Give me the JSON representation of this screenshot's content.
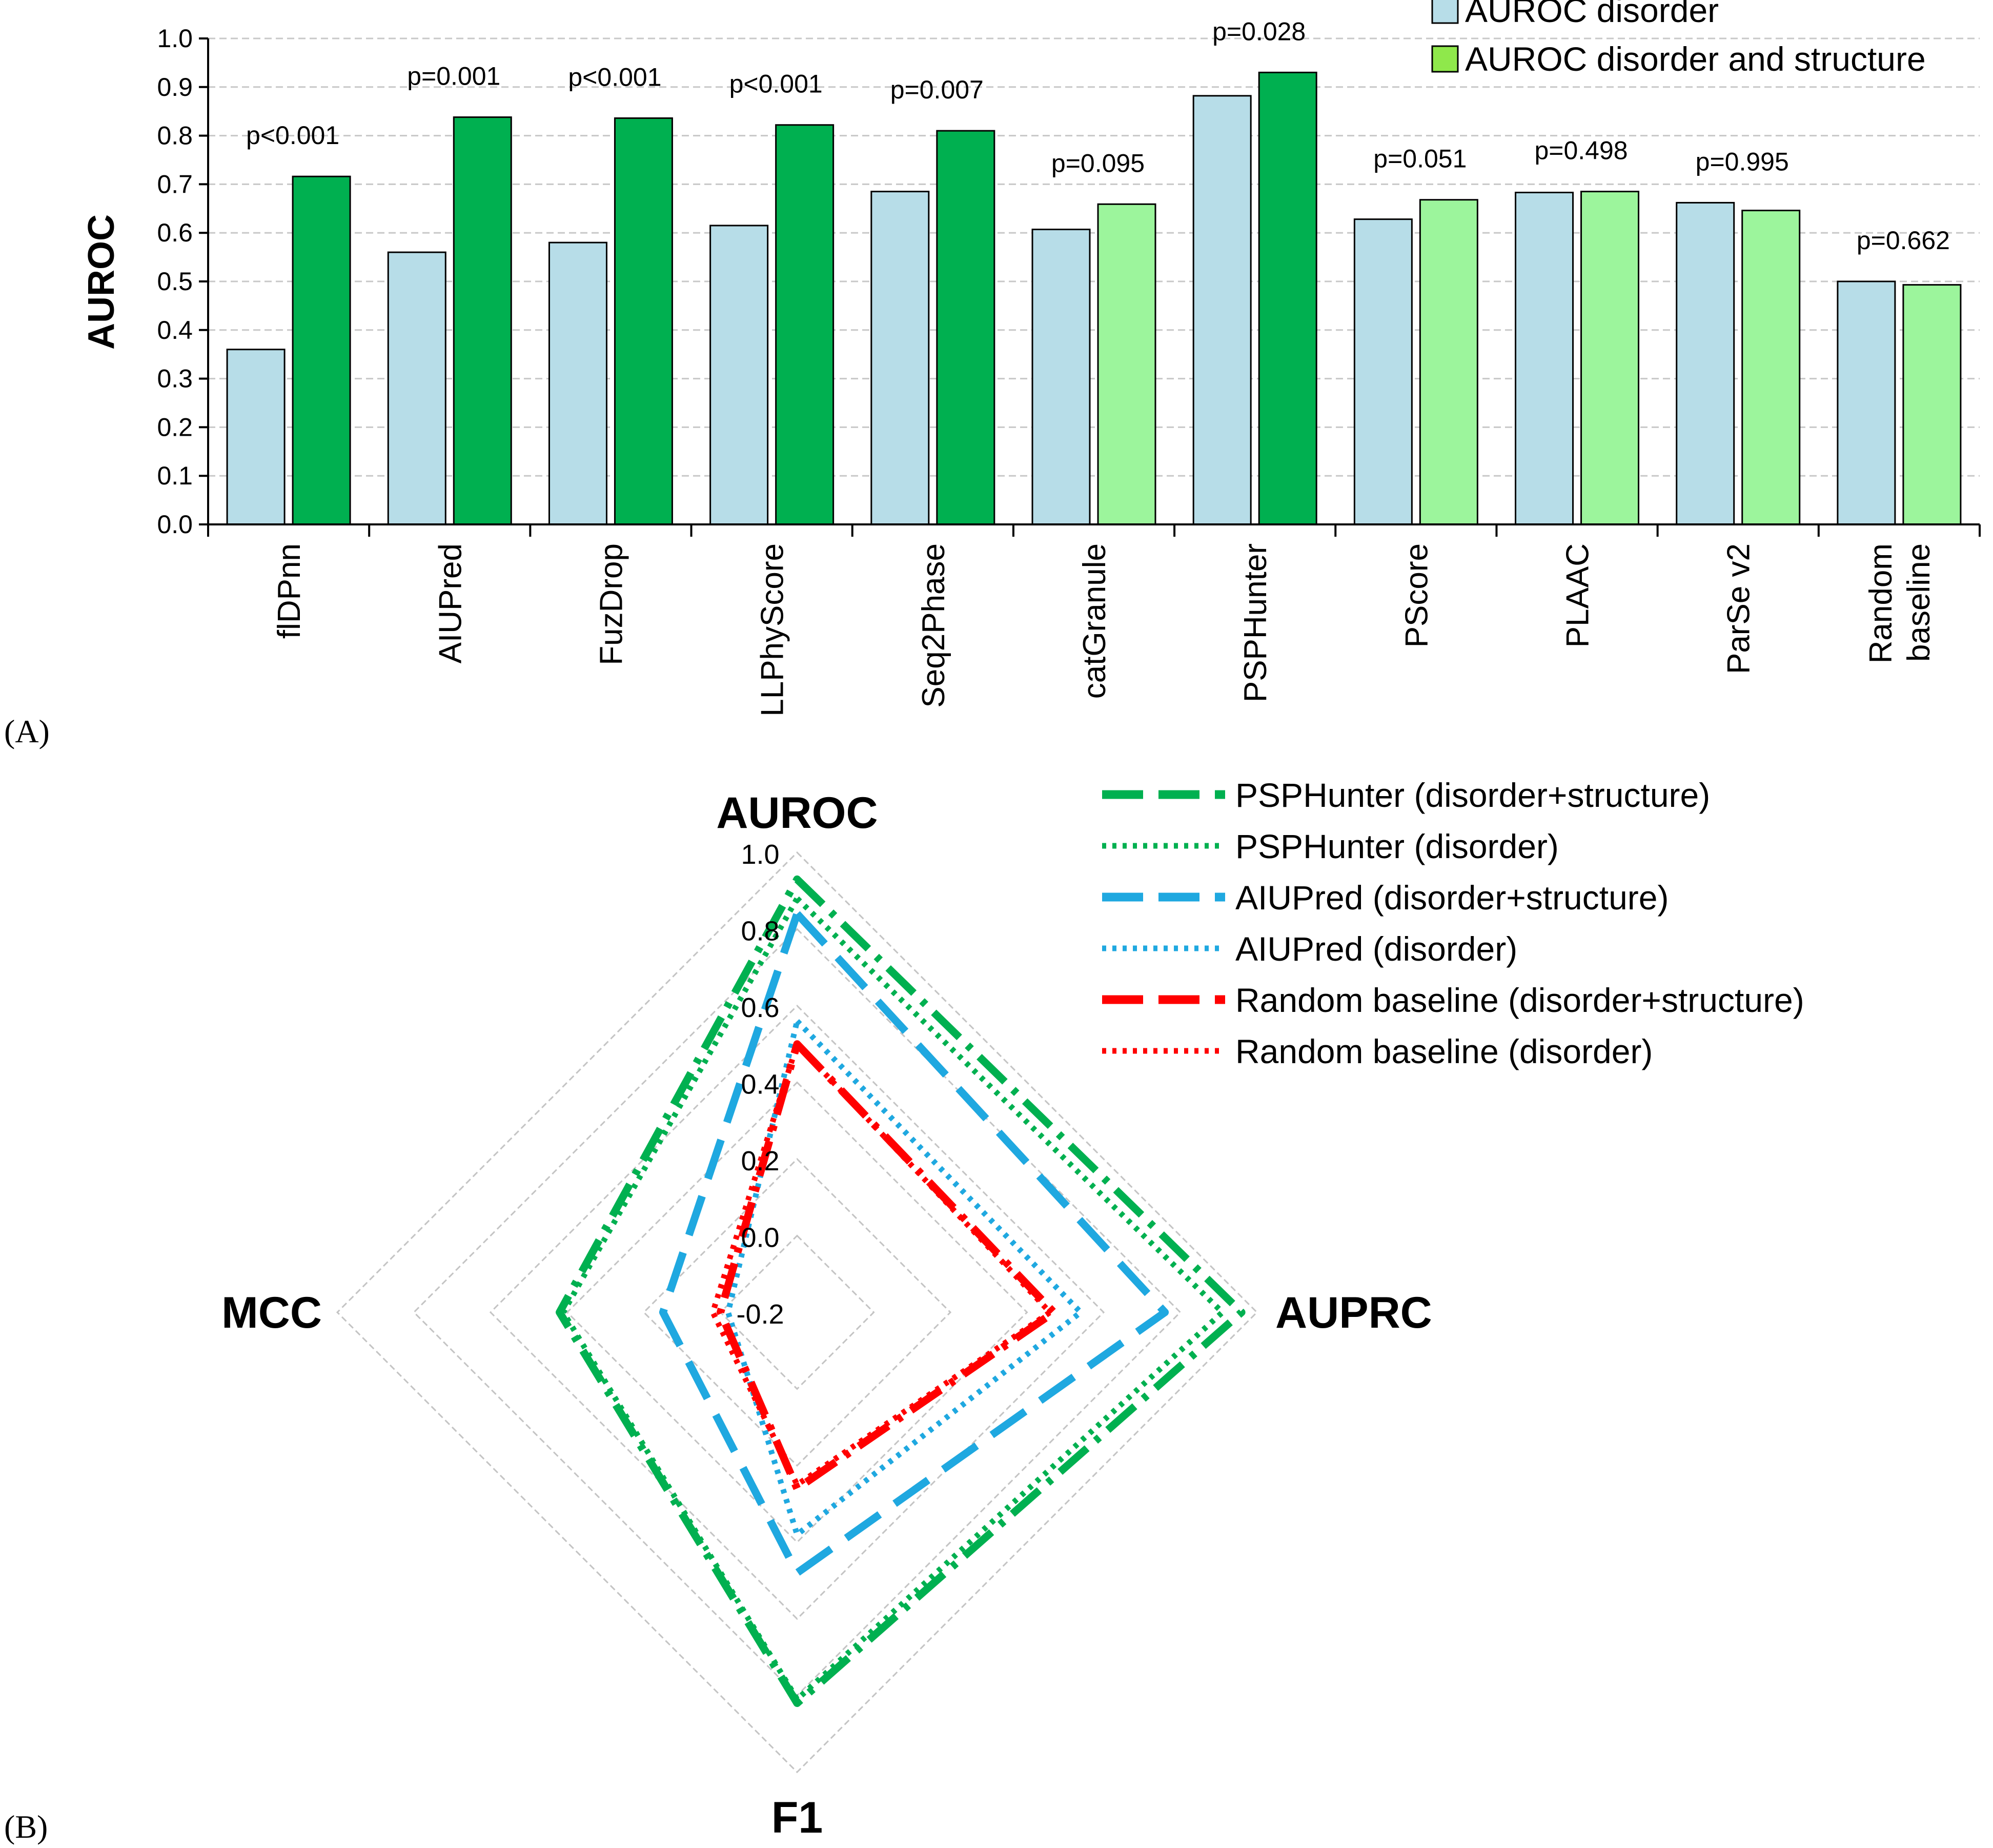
{
  "panels": {
    "a": "(A)",
    "b": "(B)"
  },
  "chart_data": [
    {
      "type": "bar",
      "title": "",
      "xlabel": "",
      "ylabel": "AUROC",
      "ylim": [
        0.0,
        1.0
      ],
      "yticks": [
        "0.0",
        "0.1",
        "0.2",
        "0.3",
        "0.4",
        "0.5",
        "0.6",
        "0.7",
        "0.8",
        "0.9",
        "1.0"
      ],
      "grid": true,
      "legend_position": "top-right",
      "categories": [
        "flDPnn",
        "AIUPred",
        "FuzDrop",
        "LLPhyScore",
        "Seq2Phase",
        "catGranule",
        "PSPHunter",
        "PScore",
        "PLAAC",
        "ParSe v2",
        "Random baseline"
      ],
      "category_lines": [
        [
          "flDPnn"
        ],
        [
          "AIUPred"
        ],
        [
          "FuzDrop"
        ],
        [
          "LLPhyScore"
        ],
        [
          "Seq2Phase"
        ],
        [
          "catGranule"
        ],
        [
          "PSPHunter"
        ],
        [
          "PScore"
        ],
        [
          "PLAAC"
        ],
        [
          "ParSe v2"
        ],
        [
          "Random",
          "baseline"
        ]
      ],
      "series": [
        {
          "name": "AUROC disorder",
          "color": "#b7dde8",
          "values": [
            0.36,
            0.56,
            0.58,
            0.615,
            0.685,
            0.607,
            0.882,
            0.628,
            0.683,
            0.662,
            0.5
          ]
        },
        {
          "name": "AUROC disorder and structure",
          "color": "#9cf59c",
          "legend_color": "#8fe84b",
          "significant_color": "#00b050",
          "values": [
            0.716,
            0.838,
            0.836,
            0.822,
            0.81,
            0.659,
            0.93,
            0.668,
            0.685,
            0.646,
            0.493
          ],
          "significant": [
            true,
            true,
            true,
            true,
            true,
            false,
            true,
            false,
            false,
            false,
            false
          ]
        }
      ],
      "annotations": [
        "p<0.001",
        "p=0.001",
        "p<0.001",
        "p<0.001",
        "p=0.007",
        "p=0.095",
        "p=0.028",
        "p=0.051",
        "p=0.498",
        "p=0.995",
        "p=0.662"
      ]
    },
    {
      "type": "radar",
      "axes": [
        "AUROC",
        "AUPRC",
        "F1",
        "MCC"
      ],
      "range": [
        -0.2,
        1.0
      ],
      "ticks": [
        "-0.2",
        "0.0",
        "0.2",
        "0.4",
        "0.6",
        "0.8",
        "1.0"
      ],
      "series": [
        {
          "name": "PSPHunter (disorder+structure)",
          "color": "#00b050",
          "style": "dashdot",
          "values": [
            0.93,
            0.96,
            0.82,
            0.42
          ]
        },
        {
          "name": "PSPHunter (disorder)",
          "color": "#00b050",
          "style": "dotted",
          "values": [
            0.88,
            0.91,
            0.81,
            0.41
          ]
        },
        {
          "name": "AIUPred (disorder+structure)",
          "color": "#1fa8e0",
          "style": "dashed",
          "values": [
            0.84,
            0.76,
            0.48,
            0.15
          ]
        },
        {
          "name": "AIUPred (disorder)",
          "color": "#1fa8e0",
          "style": "dotted",
          "values": [
            0.56,
            0.54,
            0.38,
            -0.02
          ]
        },
        {
          "name": "Random baseline (disorder+structure)",
          "color": "#ff0000",
          "style": "dashdot",
          "values": [
            0.5,
            0.47,
            0.26,
            0.0
          ]
        },
        {
          "name": "Random baseline (disorder)",
          "color": "#ff0000",
          "style": "dotted",
          "values": [
            0.5,
            0.46,
            0.25,
            0.02
          ]
        }
      ]
    }
  ]
}
